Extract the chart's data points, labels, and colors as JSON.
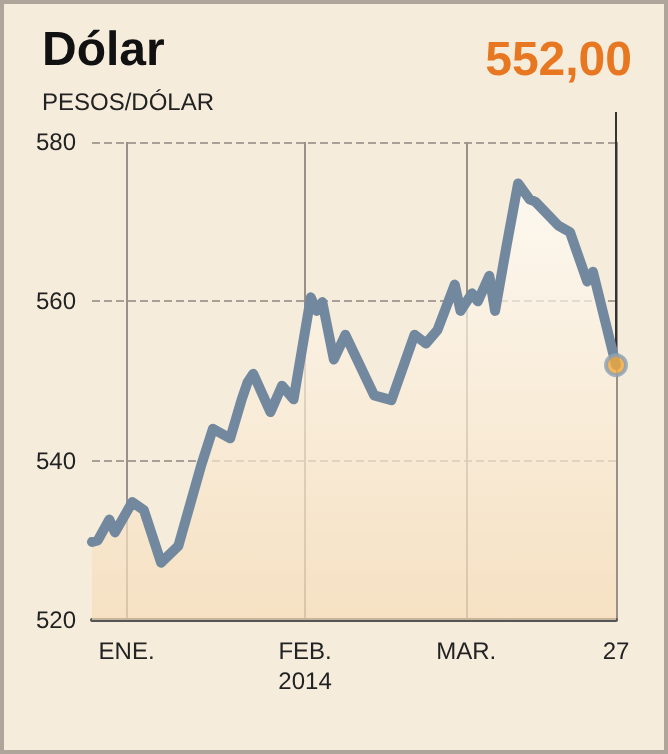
{
  "chart_data": {
    "type": "area",
    "title": "Dólar",
    "ylabel": "PESOS/DÓLAR",
    "x": [
      "2013-12-26",
      "2013-12-27",
      "2013-12-29",
      "2013-12-30",
      "2014-01-02",
      "2014-01-04",
      "2014-01-07",
      "2014-01-10",
      "2014-01-14",
      "2014-01-16",
      "2014-01-19",
      "2014-01-21",
      "2014-01-22",
      "2014-01-23",
      "2014-01-26",
      "2014-01-28",
      "2014-01-30",
      "2014-02-02",
      "2014-02-03",
      "2014-02-04",
      "2014-02-06",
      "2014-02-08",
      "2014-02-13",
      "2014-02-16",
      "2014-02-20",
      "2014-02-22",
      "2014-02-24",
      "2014-02-27",
      "2014-02-28",
      "2014-03-02",
      "2014-03-03",
      "2014-03-05",
      "2014-03-06",
      "2014-03-08",
      "2014-03-10",
      "2014-03-12",
      "2014-03-13",
      "2014-03-17",
      "2014-03-19",
      "2014-03-22",
      "2014-03-23",
      "2014-03-27"
    ],
    "series": [
      {
        "color": "#72889e",
        "values": [
          529.8,
          530,
          532.6,
          531,
          534.8,
          533.8,
          527.2,
          529.3,
          539.5,
          544,
          542.8,
          547.7,
          549.8,
          550.9,
          546.1,
          549.4,
          547.7,
          560.5,
          558.8,
          559.9,
          552.7,
          555.8,
          548.2,
          547.6,
          555.8,
          554.7,
          556.4,
          562.1,
          558.8,
          561,
          560,
          563.2,
          558.8,
          567,
          574.8,
          572.8,
          572.5,
          569.5,
          568.7,
          562.5,
          563.7,
          552
        ]
      }
    ],
    "annotations": [
      {
        "text": "552,00",
        "x": "2014-03-27",
        "y": 552
      }
    ],
    "xlim": [
      "2013-12-26",
      "2014-03-27"
    ],
    "xticks": [
      {
        "value": "2014-01-01",
        "label": "ENE."
      },
      {
        "value": "2014-02-01",
        "label": "FEB.\n2014"
      },
      {
        "value": "2014-03-01",
        "label": "MAR."
      },
      {
        "value": "2014-03-27",
        "label": "27"
      }
    ],
    "ylim": [
      520,
      580
    ],
    "yticks": [
      520,
      540,
      560,
      580
    ],
    "grid": true
  }
}
